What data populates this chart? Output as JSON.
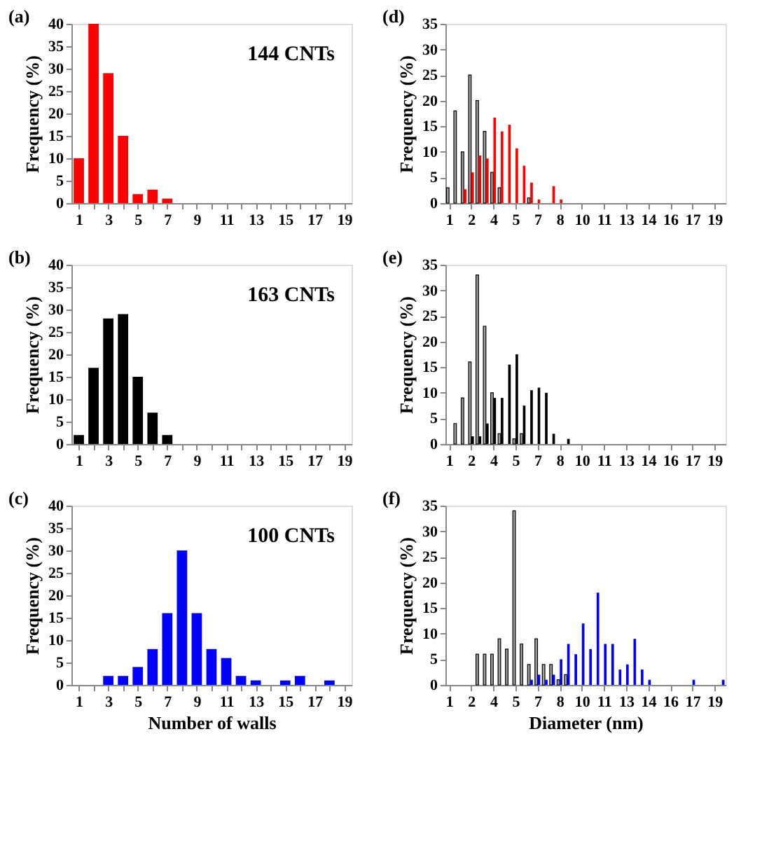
{
  "chart_data": [
    {
      "type": "bar",
      "title": "(a)",
      "ylabel": "Frequency (%)",
      "annotations": [
        "144 CNTs"
      ],
      "xlim": [
        0.5,
        19.5
      ],
      "ylim": [
        0,
        40
      ],
      "yticks": [
        0,
        5,
        10,
        15,
        20,
        25,
        30,
        35,
        40
      ],
      "xticks": [
        1,
        {
          "value": 2,
          "label": null
        },
        3,
        {
          "value": 4,
          "label": null
        },
        5,
        {
          "value": 6,
          "label": null
        },
        7,
        {
          "value": 8,
          "label": null
        },
        9,
        {
          "value": 10,
          "label": null
        },
        11,
        {
          "value": 12,
          "label": null
        },
        13,
        {
          "value": 14,
          "label": null
        },
        15,
        {
          "value": 16,
          "label": null
        },
        17,
        {
          "value": 18,
          "label": null
        },
        19
      ],
      "grid": false,
      "series": [
        {
          "color": "#ff0000",
          "x": [
            1,
            2,
            3,
            4,
            5,
            6,
            7
          ],
          "values": [
            10,
            40,
            29,
            15,
            2,
            3,
            1
          ]
        }
      ]
    },
    {
      "type": "bar",
      "title": "(b)",
      "ylabel": "Frequency (%)",
      "annotations": [
        "163 CNTs"
      ],
      "xlim": [
        0.5,
        19.5
      ],
      "ylim": [
        0,
        40
      ],
      "yticks": [
        0,
        5,
        10,
        15,
        20,
        25,
        30,
        35,
        40
      ],
      "xticks": [
        1,
        {
          "value": 2,
          "label": null
        },
        3,
        {
          "value": 4,
          "label": null
        },
        5,
        {
          "value": 6,
          "label": null
        },
        7,
        {
          "value": 8,
          "label": null
        },
        9,
        {
          "value": 10,
          "label": null
        },
        11,
        {
          "value": 12,
          "label": null
        },
        13,
        {
          "value": 14,
          "label": null
        },
        15,
        {
          "value": 16,
          "label": null
        },
        17,
        {
          "value": 18,
          "label": null
        },
        19
      ],
      "grid": false,
      "series": [
        {
          "color": "#000000",
          "x": [
            1,
            2,
            3,
            4,
            5,
            6,
            7
          ],
          "values": [
            2,
            17,
            28,
            29,
            15,
            7,
            2
          ]
        }
      ]
    },
    {
      "type": "bar",
      "title": "(c)",
      "ylabel": "Frequency (%)",
      "xlabel": "Number of walls",
      "annotations": [
        "100 CNTs"
      ],
      "xlim": [
        0.5,
        19.5
      ],
      "ylim": [
        0,
        40
      ],
      "yticks": [
        0,
        5,
        10,
        15,
        20,
        25,
        30,
        35,
        40
      ],
      "xticks": [
        1,
        {
          "value": 2,
          "label": null
        },
        3,
        {
          "value": 4,
          "label": null
        },
        5,
        {
          "value": 6,
          "label": null
        },
        7,
        {
          "value": 8,
          "label": null
        },
        9,
        {
          "value": 10,
          "label": null
        },
        11,
        {
          "value": 12,
          "label": null
        },
        13,
        {
          "value": 14,
          "label": null
        },
        15,
        {
          "value": 16,
          "label": null
        },
        17,
        {
          "value": 18,
          "label": null
        },
        19
      ],
      "grid": false,
      "series": [
        {
          "color": "#0000ff",
          "x": [
            3,
            4,
            5,
            6,
            7,
            8,
            9,
            10,
            11,
            12,
            13,
            15,
            16,
            18
          ],
          "values": [
            2,
            2,
            4,
            8,
            16,
            30,
            16,
            8,
            6,
            2,
            1,
            1,
            2,
            1
          ]
        }
      ]
    },
    {
      "type": "bar",
      "title": "(d)",
      "ylabel": "Frequency (%)",
      "xlim": [
        0.75,
        19.75
      ],
      "ylim": [
        0,
        35
      ],
      "yticks": [
        0,
        5,
        10,
        15,
        20,
        25,
        30,
        35
      ],
      "xticks": [
        1,
        {
          "value": 2.5,
          "label": "2"
        },
        4,
        {
          "value": 5.5,
          "label": "5"
        },
        7,
        {
          "value": 8.5,
          "label": "8"
        },
        10,
        {
          "value": 11.5,
          "label": "11"
        },
        13,
        {
          "value": 14.5,
          "label": "14"
        },
        16,
        {
          "value": 17.5,
          "label": "17"
        },
        19
      ],
      "grid": false,
      "series": [
        {
          "color": "#a0a0a0",
          "x": [
            1,
            1.5,
            2,
            2.5,
            3,
            3.5,
            4,
            4.5,
            6.5
          ],
          "values": [
            3,
            18,
            10,
            25,
            20,
            14,
            6,
            3,
            1
          ]
        },
        {
          "color": "#ff0000",
          "x": [
            2,
            2.5,
            3,
            3.5,
            4,
            4.5,
            5,
            5.5,
            6,
            6.5,
            7,
            8,
            8.5
          ],
          "values": [
            2.7,
            6,
            9.3,
            8.7,
            16.7,
            14,
            15.3,
            10.7,
            7.3,
            4,
            0.7,
            3.3,
            0.7
          ]
        }
      ]
    },
    {
      "type": "bar",
      "title": "(e)",
      "ylabel": "Frequency (%)",
      "xlim": [
        0.75,
        19.75
      ],
      "ylim": [
        0,
        35
      ],
      "yticks": [
        0,
        5,
        10,
        15,
        20,
        25,
        30,
        35
      ],
      "xticks": [
        1,
        {
          "value": 2.5,
          "label": "2"
        },
        4,
        {
          "value": 5.5,
          "label": "5"
        },
        7,
        {
          "value": 8.5,
          "label": "8"
        },
        10,
        {
          "value": 11.5,
          "label": "11"
        },
        13,
        {
          "value": 14.5,
          "label": "14"
        },
        16,
        {
          "value": 17.5,
          "label": "17"
        },
        19
      ],
      "grid": false,
      "series": [
        {
          "color": "#a0a0a0",
          "x": [
            1.5,
            2,
            2.5,
            3,
            3.5,
            4,
            4.5,
            5.5,
            6
          ],
          "values": [
            4,
            9,
            16,
            33,
            23,
            10,
            2,
            1,
            2
          ]
        },
        {
          "color": "#000000",
          "x": [
            2.5,
            3,
            3.5,
            4,
            4.5,
            5,
            5.5,
            6,
            6.5,
            7,
            7.5,
            8,
            9
          ],
          "values": [
            1.5,
            1.5,
            4,
            9,
            9,
            15.5,
            17.5,
            7.5,
            10.5,
            11,
            10,
            2,
            1
          ]
        }
      ]
    },
    {
      "type": "bar",
      "title": "(f)",
      "ylabel": "Frequency (%)",
      "xlabel": "Diameter (nm)",
      "xlim": [
        0.75,
        19.75
      ],
      "ylim": [
        0,
        35
      ],
      "yticks": [
        0,
        5,
        10,
        15,
        20,
        25,
        30,
        35
      ],
      "xticks": [
        1,
        {
          "value": 2.5,
          "label": "2"
        },
        4,
        {
          "value": 5.5,
          "label": "5"
        },
        7,
        {
          "value": 8.5,
          "label": "8"
        },
        10,
        {
          "value": 11.5,
          "label": "11"
        },
        13,
        {
          "value": 14.5,
          "label": "14"
        },
        16,
        {
          "value": 17.5,
          "label": "17"
        },
        19
      ],
      "grid": false,
      "series": [
        {
          "color": "#a0a0a0",
          "x": [
            3,
            3.5,
            4,
            4.5,
            5,
            5.5,
            6,
            6.5,
            7,
            7.5,
            8,
            8.5,
            9
          ],
          "values": [
            6,
            6,
            6,
            9,
            7,
            34,
            8,
            4,
            9,
            4,
            4,
            1,
            2
          ]
        },
        {
          "color": "#0000ff",
          "x": [
            6.5,
            7,
            7.5,
            8,
            8.5,
            9,
            9.5,
            10,
            10.5,
            11,
            11.5,
            12,
            12.5,
            13,
            13.5,
            14,
            14.5,
            17.5,
            19.5
          ],
          "values": [
            1,
            2,
            1,
            2,
            5,
            8,
            6,
            12,
            7,
            18,
            8,
            8,
            3,
            4,
            9,
            3,
            1,
            1,
            1
          ]
        }
      ]
    }
  ]
}
